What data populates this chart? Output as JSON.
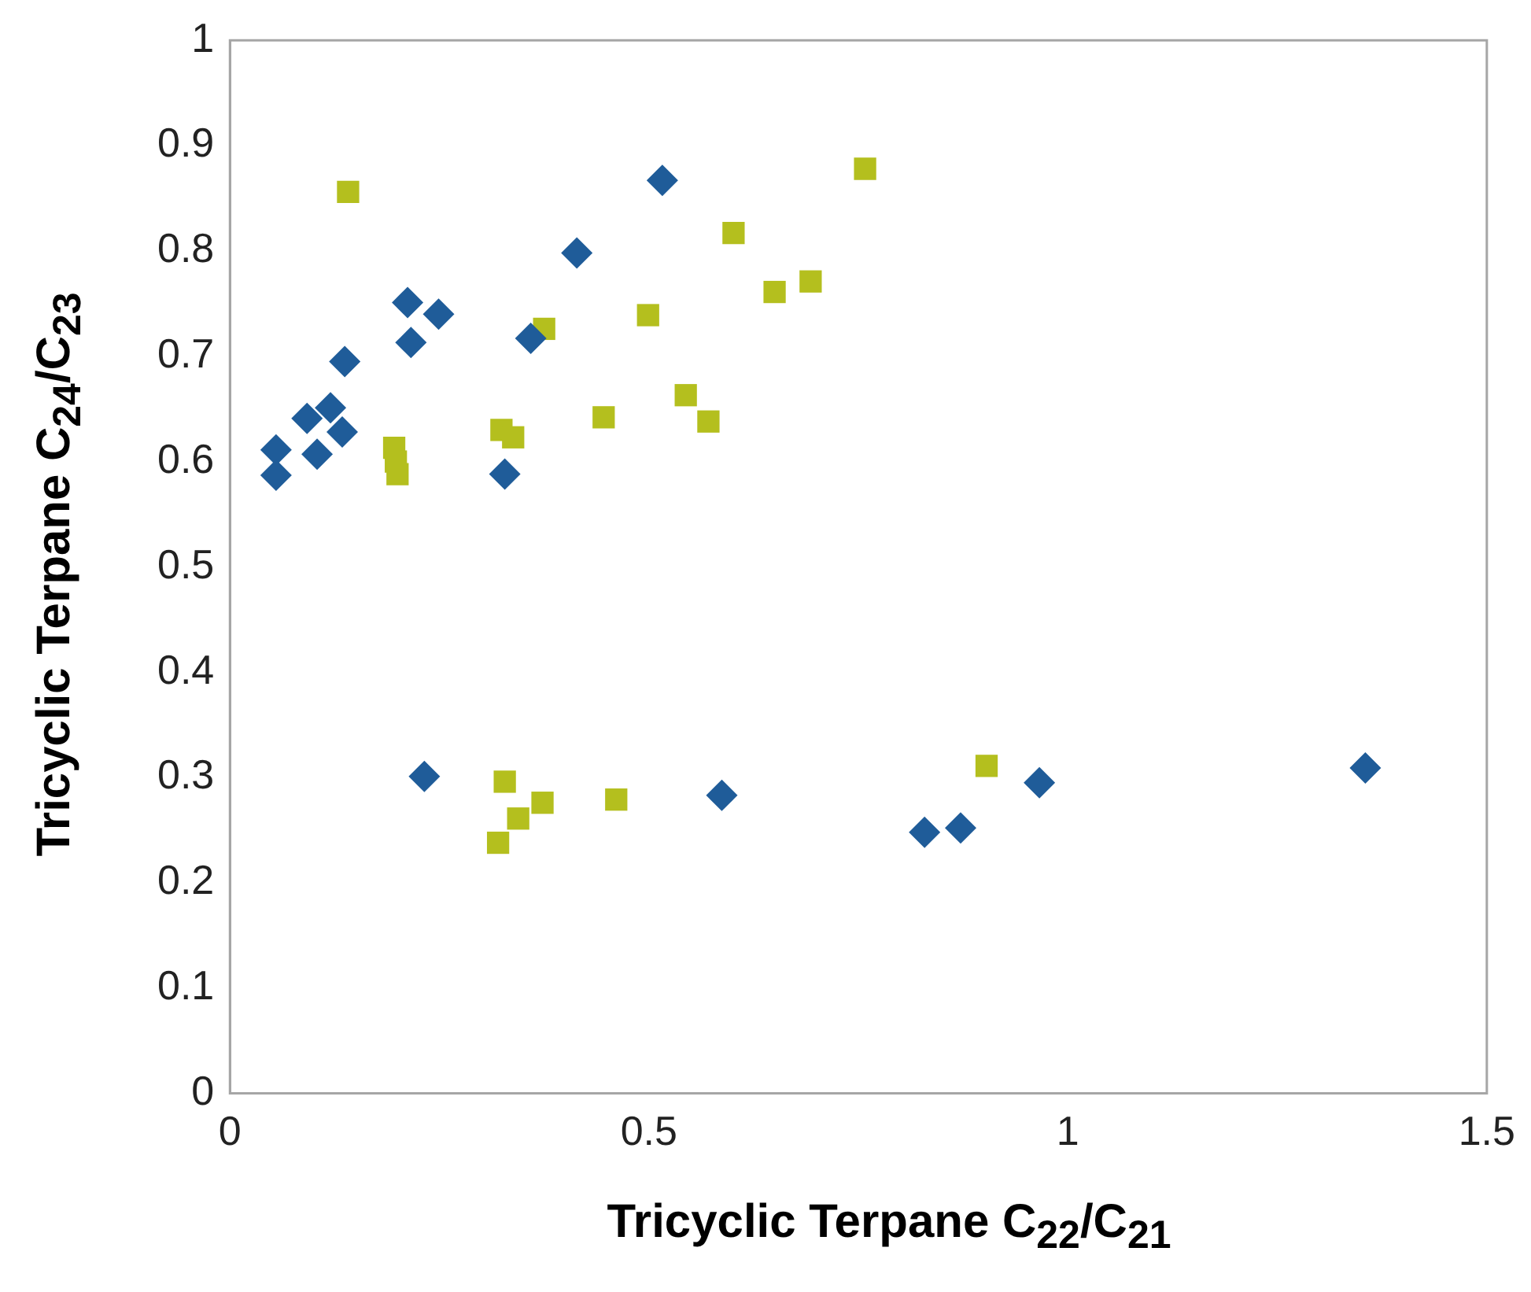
{
  "chart_data": {
    "type": "scatter",
    "xlabel": "Tricyclic Terpane C$_{22}$/C$_{21}$",
    "ylabel": "Tricyclic Terpane C$_{24}$/C$_{23}$",
    "xlim": [
      0,
      1.5
    ],
    "xticks": [
      0,
      0.5,
      1,
      1.5
    ],
    "ylim": [
      0,
      1
    ],
    "yticks": [
      0,
      0.1,
      0.2,
      0.3,
      0.4,
      0.5,
      0.6,
      0.7,
      0.8,
      0.9,
      1
    ],
    "grid": false,
    "legend": false,
    "series": [
      {
        "color": "#1f5c99",
        "marker": "diamond",
        "x": [
          0.055,
          0.055,
          0.092,
          0.104,
          0.12,
          0.134,
          0.137,
          0.212,
          0.216,
          0.249,
          0.328,
          0.359,
          0.414,
          0.516,
          0.232,
          0.587,
          0.829,
          0.872,
          0.966,
          1.355
        ],
        "values": [
          0.611,
          0.587,
          0.641,
          0.607,
          0.651,
          0.628,
          0.695,
          0.751,
          0.713,
          0.74,
          0.588,
          0.717,
          0.798,
          0.867,
          0.301,
          0.283,
          0.248,
          0.252,
          0.295,
          0.309
        ]
      },
      {
        "color": "#b4bf1e",
        "marker": "square",
        "x": [
          0.141,
          0.196,
          0.198,
          0.2,
          0.324,
          0.338,
          0.375,
          0.446,
          0.499,
          0.544,
          0.571,
          0.601,
          0.65,
          0.693,
          0.758,
          0.328,
          0.344,
          0.32,
          0.373,
          0.461,
          0.903
        ],
        "values": [
          0.856,
          0.613,
          0.6,
          0.588,
          0.63,
          0.623,
          0.726,
          0.642,
          0.739,
          0.663,
          0.638,
          0.817,
          0.761,
          0.771,
          0.878,
          0.296,
          0.261,
          0.238,
          0.276,
          0.279,
          0.311
        ]
      }
    ]
  }
}
